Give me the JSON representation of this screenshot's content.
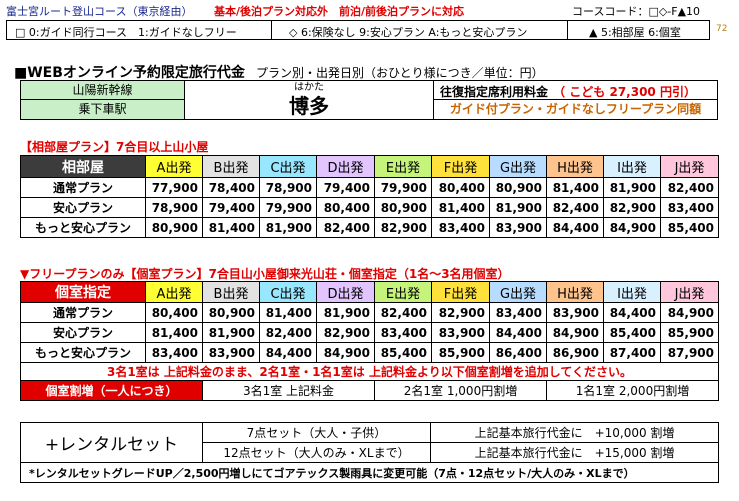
{
  "header": {
    "course_name": "富士宮ルート登山コース（東京経由）",
    "course_note": "基本/後泊プラン対応外　前泊/前後泊プランに対応",
    "course_code": "コースコード：□◇-F▲10",
    "legend_guide": "□ 0:ガイド同行コース　1:ガイドなしフリー",
    "legend_insurance": "◇ 6:保険なし 9:安心プラン A:もっと安心プラン",
    "legend_room": "▲ 5:相部屋 6:個室",
    "page_no": "72"
  },
  "intro": {
    "title_main": "■WEBオンライン予約限定旅行代金",
    "title_sub": "プラン別・出発日別（おひとり様につき／単位：円）",
    "line_label": "山陽新幹線",
    "station_label": "乗下車駅",
    "station_reading": "はかた",
    "station_name": "博多",
    "roundtrip_label": "往復指定席利用料金",
    "child_price": "（ こども  27,300  円引）",
    "guide_note": "ガイド付プラン・ガイドなしフリープラン同額"
  },
  "colors": {
    "accent_red": "#e00000",
    "header_dark": "#3c3c3c",
    "orange_text": "#c86400"
  },
  "departures": [
    {
      "label": "A出発",
      "color": "#ffff33"
    },
    {
      "label": "B出発",
      "color": "#e2e2e2"
    },
    {
      "label": "C出発",
      "color": "#99e6ff"
    },
    {
      "label": "D出発",
      "color": "#e2c4ff"
    },
    {
      "label": "E出発",
      "color": "#c6f47a"
    },
    {
      "label": "F出発",
      "color": "#ffe13c"
    },
    {
      "label": "G出発",
      "color": "#b7dcff"
    },
    {
      "label": "H出発",
      "color": "#ffc48e"
    },
    {
      "label": "I出発",
      "color": "#d9f1ff"
    },
    {
      "label": "J出発",
      "color": "#ffc6dc"
    }
  ],
  "shared_room": {
    "section_title": "【相部屋プラン】7合目以上山小屋",
    "header_label": "相部屋",
    "rows": [
      {
        "label": "通常プラン",
        "values": [
          "77,900",
          "78,400",
          "78,900",
          "79,400",
          "79,900",
          "80,400",
          "80,900",
          "81,400",
          "81,900",
          "82,400"
        ]
      },
      {
        "label": "安心プラン",
        "values": [
          "78,900",
          "79,400",
          "79,900",
          "80,400",
          "80,900",
          "81,400",
          "81,900",
          "82,400",
          "82,900",
          "83,400"
        ]
      },
      {
        "label": "もっと安心プラン",
        "values": [
          "80,900",
          "81,400",
          "81,900",
          "82,400",
          "82,900",
          "83,400",
          "83,900",
          "84,400",
          "84,900",
          "85,400"
        ]
      }
    ]
  },
  "private_room": {
    "section_title": "▼フリープランのみ【個室プラン】7合目山小屋御来光山荘・個室指定（1名～3名用個室）",
    "header_label": "個室指定",
    "rows": [
      {
        "label": "通常プラン",
        "values": [
          "80,400",
          "80,900",
          "81,400",
          "81,900",
          "82,400",
          "82,900",
          "83,400",
          "83,900",
          "84,400",
          "84,900"
        ]
      },
      {
        "label": "安心プラン",
        "values": [
          "81,400",
          "81,900",
          "82,400",
          "82,900",
          "83,400",
          "83,900",
          "84,400",
          "84,900",
          "85,400",
          "85,900"
        ]
      },
      {
        "label": "もっと安心プラン",
        "values": [
          "83,400",
          "83,900",
          "84,400",
          "84,900",
          "85,400",
          "85,900",
          "86,400",
          "86,900",
          "87,400",
          "87,900"
        ]
      }
    ],
    "note": "3名1室は 上記料金のまま、2名1室・1名1室は 上記料金より以下個室割増を追加してください。",
    "surcharge_label": "個室割増（一人につき）",
    "surcharge_3": "3名1室 上記料金",
    "surcharge_2": "2名1室 1,000円割増",
    "surcharge_1": "1名1室 2,000円割増"
  },
  "rental": {
    "label": "+レンタルセット",
    "set7_label": "7点セット（大人・子供）",
    "set7_price": "上記基本旅行代金に　+10,000  割増",
    "set12_label": "12点セット（大人のみ・XLまで）",
    "set12_price": "上記基本旅行代金に　+15,000  割増",
    "footnote": "*レンタルセットグレードUP／2,500円増しにてゴアテックス製雨具に変更可能（7点・12点セット/大人のみ・XLまで）"
  }
}
